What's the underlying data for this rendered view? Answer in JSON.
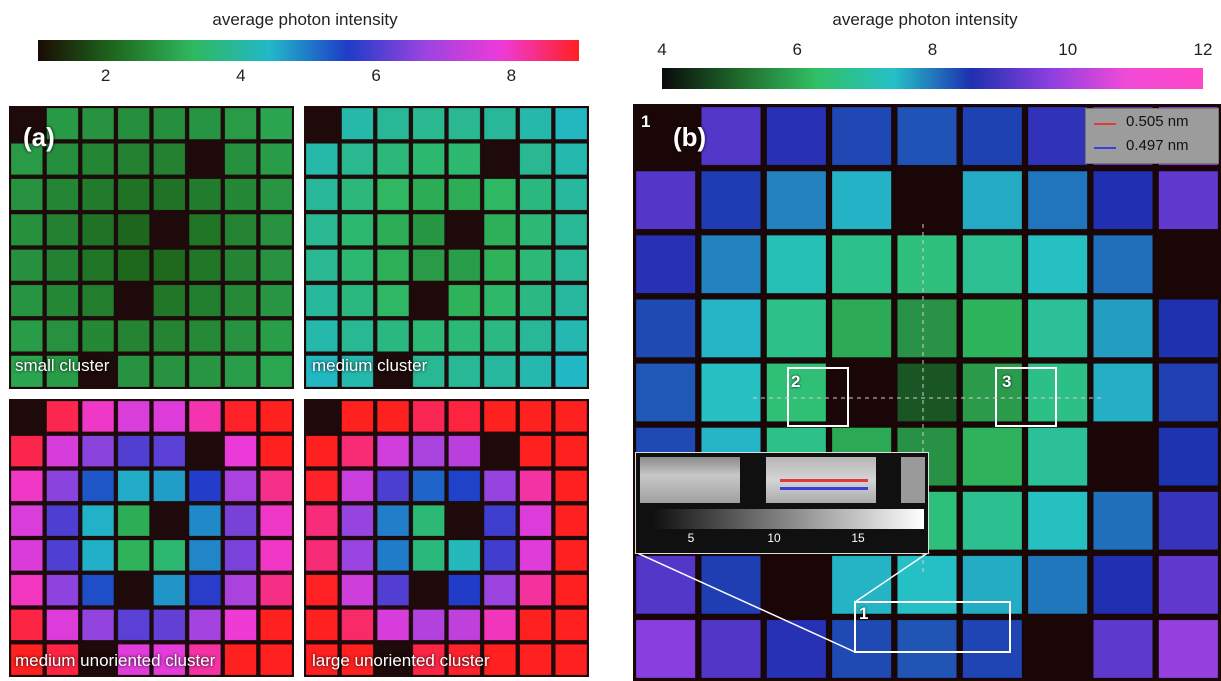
{
  "colorbar_a": {
    "title": "average photon intensity",
    "ticks": [
      "2",
      "4",
      "6",
      "8"
    ],
    "tick_values": [
      2,
      4,
      6,
      8
    ],
    "range": [
      1,
      9
    ],
    "colors": [
      "#1a0b04",
      "#1e6a1e",
      "#2fb85f",
      "#22b8c8",
      "#1e3cc8",
      "#9a44e0",
      "#ef3ad8",
      "#ff2020"
    ]
  },
  "colorbar_b": {
    "title": "average photon intensity",
    "ticks": [
      "4",
      "6",
      "8",
      "10",
      "12"
    ],
    "tick_values": [
      4,
      6,
      8,
      10,
      12
    ],
    "range": [
      4,
      12
    ],
    "colors": [
      "#0a0a0a",
      "#1f6b2a",
      "#31c065",
      "#25c0c8",
      "#1e30b0",
      "#8a3fe0",
      "#f04ad8",
      "#ff47c8"
    ]
  },
  "panel_a": {
    "label": "(a)",
    "subpanels": [
      {
        "caption": "small cluster"
      },
      {
        "caption": "medium cluster"
      },
      {
        "caption": "medium unoriented cluster"
      },
      {
        "caption": "large unoriented cluster"
      }
    ]
  },
  "panel_b": {
    "label": "(b)",
    "corner_number": "1",
    "legend": [
      {
        "label": "0.505 nm",
        "color": "#e03a3a"
      },
      {
        "label": "0.497 nm",
        "color": "#3a40e0"
      }
    ],
    "boxes": [
      {
        "label": "2"
      },
      {
        "label": "3"
      },
      {
        "label": "1"
      }
    ],
    "inset": {
      "ticks": [
        "5",
        "10",
        "15"
      ]
    }
  }
}
